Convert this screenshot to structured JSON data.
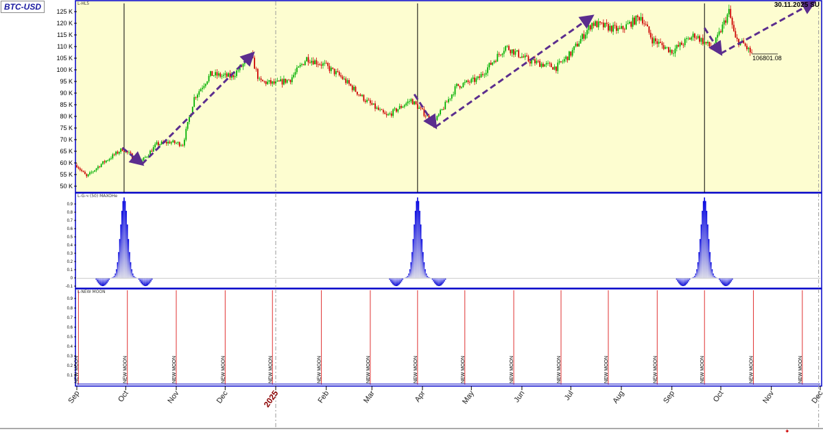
{
  "symbol": "BTC-USD",
  "date_stamp": "30.11.2025 SU",
  "panel_labels": {
    "price": "L-HL5",
    "impulse": "L-G-ч (50) MAXOHe",
    "moon": "L-NEW MOON"
  },
  "colors": {
    "price_bg": "#fdfdd0",
    "border": "#0000c8",
    "up": "#00b000",
    "down": "#cc0000",
    "arrow": "#5b2d8e",
    "moon_line": "#e03030"
  },
  "chart_data": [
    {
      "type": "candlestick",
      "ylim": [
        48000,
        128000
      ],
      "yticks": [
        {
          "v": 50000,
          "label": "50 K"
        },
        {
          "v": 55000,
          "label": "55 K"
        },
        {
          "v": 60000,
          "label": "60 K"
        },
        {
          "v": 65000,
          "label": "65 K"
        },
        {
          "v": 70000,
          "label": "70 K"
        },
        {
          "v": 75000,
          "label": "75 K"
        },
        {
          "v": 80000,
          "label": "80 K"
        },
        {
          "v": 85000,
          "label": "85 K"
        },
        {
          "v": 90000,
          "label": "90 K"
        },
        {
          "v": 95000,
          "label": "95 K"
        },
        {
          "v": 100000,
          "label": "100 K"
        },
        {
          "v": 105000,
          "label": "105 K"
        },
        {
          "v": 110000,
          "label": "110 K"
        },
        {
          "v": 115000,
          "label": "115 K"
        },
        {
          "v": 120000,
          "label": "120 K"
        },
        {
          "v": 125000,
          "label": "125 K"
        }
      ],
      "x_range": [
        "2024-09-01",
        "2025-12-01"
      ],
      "price_path": [
        [
          "2024-09-01",
          59000
        ],
        [
          "2024-09-07",
          54000
        ],
        [
          "2024-09-15",
          59000
        ],
        [
          "2024-09-29",
          66000
        ],
        [
          "2024-10-10",
          60000
        ],
        [
          "2024-10-20",
          68000
        ],
        [
          "2024-10-28",
          69000
        ],
        [
          "2024-11-05",
          68000
        ],
        [
          "2024-11-12",
          88000
        ],
        [
          "2024-11-22",
          98000
        ],
        [
          "2024-12-05",
          97000
        ],
        [
          "2024-12-17",
          106000
        ],
        [
          "2024-12-22",
          95000
        ],
        [
          "2025-01-01",
          94000
        ],
        [
          "2025-01-10",
          96000
        ],
        [
          "2025-01-20",
          105000
        ],
        [
          "2025-01-31",
          102000
        ],
        [
          "2025-02-10",
          97000
        ],
        [
          "2025-02-25",
          87000
        ],
        [
          "2025-03-10",
          80000
        ],
        [
          "2025-03-25",
          87000
        ],
        [
          "2025-04-08",
          77000
        ],
        [
          "2025-04-22",
          93000
        ],
        [
          "2025-05-05",
          96000
        ],
        [
          "2025-05-22",
          110000
        ],
        [
          "2025-06-05",
          104000
        ],
        [
          "2025-06-22",
          101000
        ],
        [
          "2025-07-01",
          107000
        ],
        [
          "2025-07-14",
          120000
        ],
        [
          "2025-07-31",
          117000
        ],
        [
          "2025-08-13",
          123000
        ],
        [
          "2025-08-20",
          113000
        ],
        [
          "2025-09-01",
          108000
        ],
        [
          "2025-09-15",
          115000
        ],
        [
          "2025-09-26",
          109000
        ],
        [
          "2025-10-06",
          125000
        ],
        [
          "2025-10-10",
          113000
        ],
        [
          "2025-10-15",
          111000
        ],
        [
          "2025-10-20",
          106801
        ]
      ],
      "vertical_markers": [
        "2024-09-30",
        "2025-03-29",
        "2025-09-21"
      ],
      "last_price_label": "106801.08",
      "trend_arrows": [
        {
          "from": [
            "2024-09-29",
            66500
          ],
          "to": [
            "2024-10-11",
            59500
          ]
        },
        {
          "from": [
            "2024-10-11",
            59500
          ],
          "to": [
            "2024-12-18",
            107000
          ]
        },
        {
          "from": [
            "2025-03-27",
            89500
          ],
          "to": [
            "2025-04-09",
            75500
          ]
        },
        {
          "from": [
            "2025-04-09",
            75500
          ],
          "to": [
            "2025-07-14",
            123000
          ]
        },
        {
          "from": [
            "2025-09-21",
            118000
          ],
          "to": [
            "2025-10-01",
            107000
          ]
        },
        {
          "from": [
            "2025-10-01",
            107000
          ],
          "to": [
            "2025-11-27",
            129000
          ]
        }
      ]
    },
    {
      "type": "histogram",
      "ylim": [
        -0.12,
        1.0
      ],
      "yticks": [
        {
          "v": -0.1,
          "label": "-0.1"
        },
        {
          "v": 0,
          "label": "0"
        },
        {
          "v": 0.1,
          "label": "0.1"
        },
        {
          "v": 0.2,
          "label": "0.2"
        },
        {
          "v": 0.3,
          "label": "0.3"
        },
        {
          "v": 0.4,
          "label": "0.4"
        },
        {
          "v": 0.5,
          "label": "0.5"
        },
        {
          "v": 0.6,
          "label": "0.6"
        },
        {
          "v": 0.7,
          "label": "0.7"
        },
        {
          "v": 0.8,
          "label": "0.8"
        },
        {
          "v": 0.9,
          "label": "0.9"
        }
      ],
      "pulse_centers": [
        "2024-09-30",
        "2025-03-29",
        "2025-09-21"
      ]
    },
    {
      "type": "event_lines",
      "ylim": [
        0,
        1.0
      ],
      "yticks": [
        {
          "v": 0.1,
          "label": "0.1"
        },
        {
          "v": 0.2,
          "label": "0.2"
        },
        {
          "v": 0.3,
          "label": "0.3"
        },
        {
          "v": 0.4,
          "label": "0.4"
        },
        {
          "v": 0.5,
          "label": "0.5"
        },
        {
          "v": 0.6,
          "label": "0.6"
        },
        {
          "v": 0.7,
          "label": "0.7"
        },
        {
          "v": 0.8,
          "label": "0.8"
        },
        {
          "v": 0.9,
          "label": "0.9"
        }
      ],
      "event_label": "NEW MOON",
      "events": [
        "2024-09-02",
        "2024-10-02",
        "2024-11-01",
        "2024-12-01",
        "2024-12-30",
        "2025-01-29",
        "2025-02-28",
        "2025-03-29",
        "2025-04-27",
        "2025-05-27",
        "2025-06-25",
        "2025-07-24",
        "2025-08-23",
        "2025-09-21",
        "2025-10-21",
        "2025-11-20"
      ]
    }
  ],
  "x_axis": {
    "ticks": [
      {
        "date": "2024-09-01",
        "label": "Sep"
      },
      {
        "date": "2024-10-01",
        "label": "Oct"
      },
      {
        "date": "2024-11-01",
        "label": "Nov"
      },
      {
        "date": "2024-12-01",
        "label": "Dec"
      },
      {
        "date": "2025-01-01",
        "label": "2025",
        "year": true
      },
      {
        "date": "2025-02-01",
        "label": "Feb"
      },
      {
        "date": "2025-03-01",
        "label": "Mar"
      },
      {
        "date": "2025-04-01",
        "label": "Apr"
      },
      {
        "date": "2025-05-01",
        "label": "May"
      },
      {
        "date": "2025-06-01",
        "label": "Jun"
      },
      {
        "date": "2025-07-01",
        "label": "Jul"
      },
      {
        "date": "2025-08-01",
        "label": "Aug"
      },
      {
        "date": "2025-09-01",
        "label": "Sep"
      },
      {
        "date": "2025-10-01",
        "label": "Oct"
      },
      {
        "date": "2025-11-01",
        "label": "Nov"
      },
      {
        "date": "2025-12-01",
        "label": "Dec"
      }
    ],
    "dashed_dates": [
      "2025-01-01",
      "2025-11-30"
    ]
  }
}
